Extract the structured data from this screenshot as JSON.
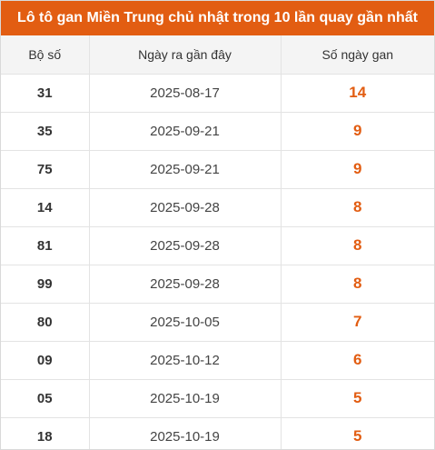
{
  "title": "Lô tô gan Miền Trung chủ nhật trong 10 lần quay gần nhất",
  "columns": [
    "Bộ số",
    "Ngày ra gần đây",
    "Số ngày gan"
  ],
  "rows": [
    {
      "number": "31",
      "date": "2025-08-17",
      "gan": "14"
    },
    {
      "number": "35",
      "date": "2025-09-21",
      "gan": "9"
    },
    {
      "number": "75",
      "date": "2025-09-21",
      "gan": "9"
    },
    {
      "number": "14",
      "date": "2025-09-28",
      "gan": "8"
    },
    {
      "number": "81",
      "date": "2025-09-28",
      "gan": "8"
    },
    {
      "number": "99",
      "date": "2025-09-28",
      "gan": "8"
    },
    {
      "number": "80",
      "date": "2025-10-05",
      "gan": "7"
    },
    {
      "number": "09",
      "date": "2025-10-12",
      "gan": "6"
    },
    {
      "number": "05",
      "date": "2025-10-19",
      "gan": "5"
    },
    {
      "number": "18",
      "date": "2025-10-19",
      "gan": "5"
    }
  ],
  "colors": {
    "accent": "#e25d12",
    "header_bg": "#f4f4f4"
  }
}
